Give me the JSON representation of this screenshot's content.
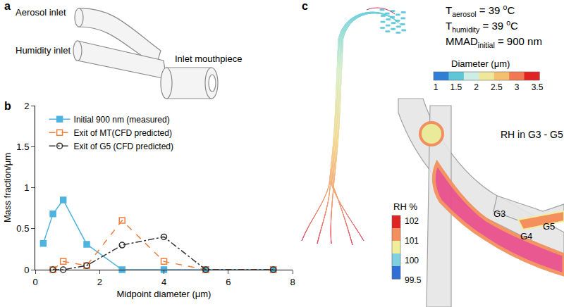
{
  "chart_data": {
    "type": "line",
    "panel_label": "b",
    "x_label": "Midpoint diameter (μm)",
    "y_label": "Mass fraction/μm",
    "x": [
      0.25,
      0.55,
      0.87,
      1.6,
      2.7,
      4.0,
      5.3,
      7.4
    ],
    "series": [
      {
        "name": "Initial 900 nm (measured)",
        "color": "#4fb3e0",
        "marker": "square",
        "line_style": "solid",
        "values": [
          0.32,
          0.68,
          0.85,
          0.31,
          0,
          0,
          0,
          0
        ]
      },
      {
        "name": "Exit of MT(CFD predicted)",
        "color": "#f07f3c",
        "marker": "square-open",
        "line_style": "dash",
        "values": [
          null,
          0,
          0.1,
          0.05,
          0.6,
          0.1,
          0,
          0
        ]
      },
      {
        "name": "Exit of G5 (CFD predicted)",
        "color": "#333333",
        "marker": "circle-open",
        "line_style": "dashdot",
        "values": [
          null,
          0,
          0,
          0.05,
          0.3,
          0.4,
          0,
          0
        ]
      }
    ],
    "xlim": [
      0,
      8
    ],
    "xticks": [
      0,
      2,
      4,
      6,
      8
    ],
    "ylim": [
      0,
      2
    ],
    "yticks": [
      0,
      0.5,
      1,
      1.5,
      2
    ],
    "grid": false,
    "legend": "upper left"
  },
  "panel_a": {
    "label": "a",
    "aerosol_inlet": "Aerosol inlet",
    "humidity_inlet": "Humidity inlet",
    "mouthpiece": "Inlet mouthpiece"
  },
  "panel_c": {
    "label": "c",
    "conditions": [
      {
        "main": "T",
        "sub": "aerosol",
        "rest": " = 39 ",
        "sup": "o",
        "unit": "C"
      },
      {
        "main": "T",
        "sub": "humidity",
        "rest": " = 39 ",
        "sup": "o",
        "unit": "C"
      },
      {
        "main": "MMAD",
        "sub": "initial",
        "rest": " = 900 nm",
        "sup": "",
        "unit": ""
      }
    ],
    "diameter_colorbar": {
      "title": "Diameter (μm)",
      "ticks": [
        1,
        1.5,
        2,
        2.5,
        3,
        3.5
      ],
      "colors": [
        "#2f7fd6",
        "#5ec6d6",
        "#cdeee6",
        "#efe79a",
        "#f4c070",
        "#f07852",
        "#e02424"
      ]
    },
    "rh_title": "RH in G3 - G5",
    "rh_colorbar": {
      "title": "RH %",
      "ticks": [
        102,
        101,
        100,
        99.5
      ],
      "colors": [
        "#e02424",
        "#f4905e",
        "#f0ee9a",
        "#7fd0e0",
        "#2f6fd6"
      ]
    },
    "generations": [
      "G3",
      "G4",
      "G5"
    ]
  }
}
